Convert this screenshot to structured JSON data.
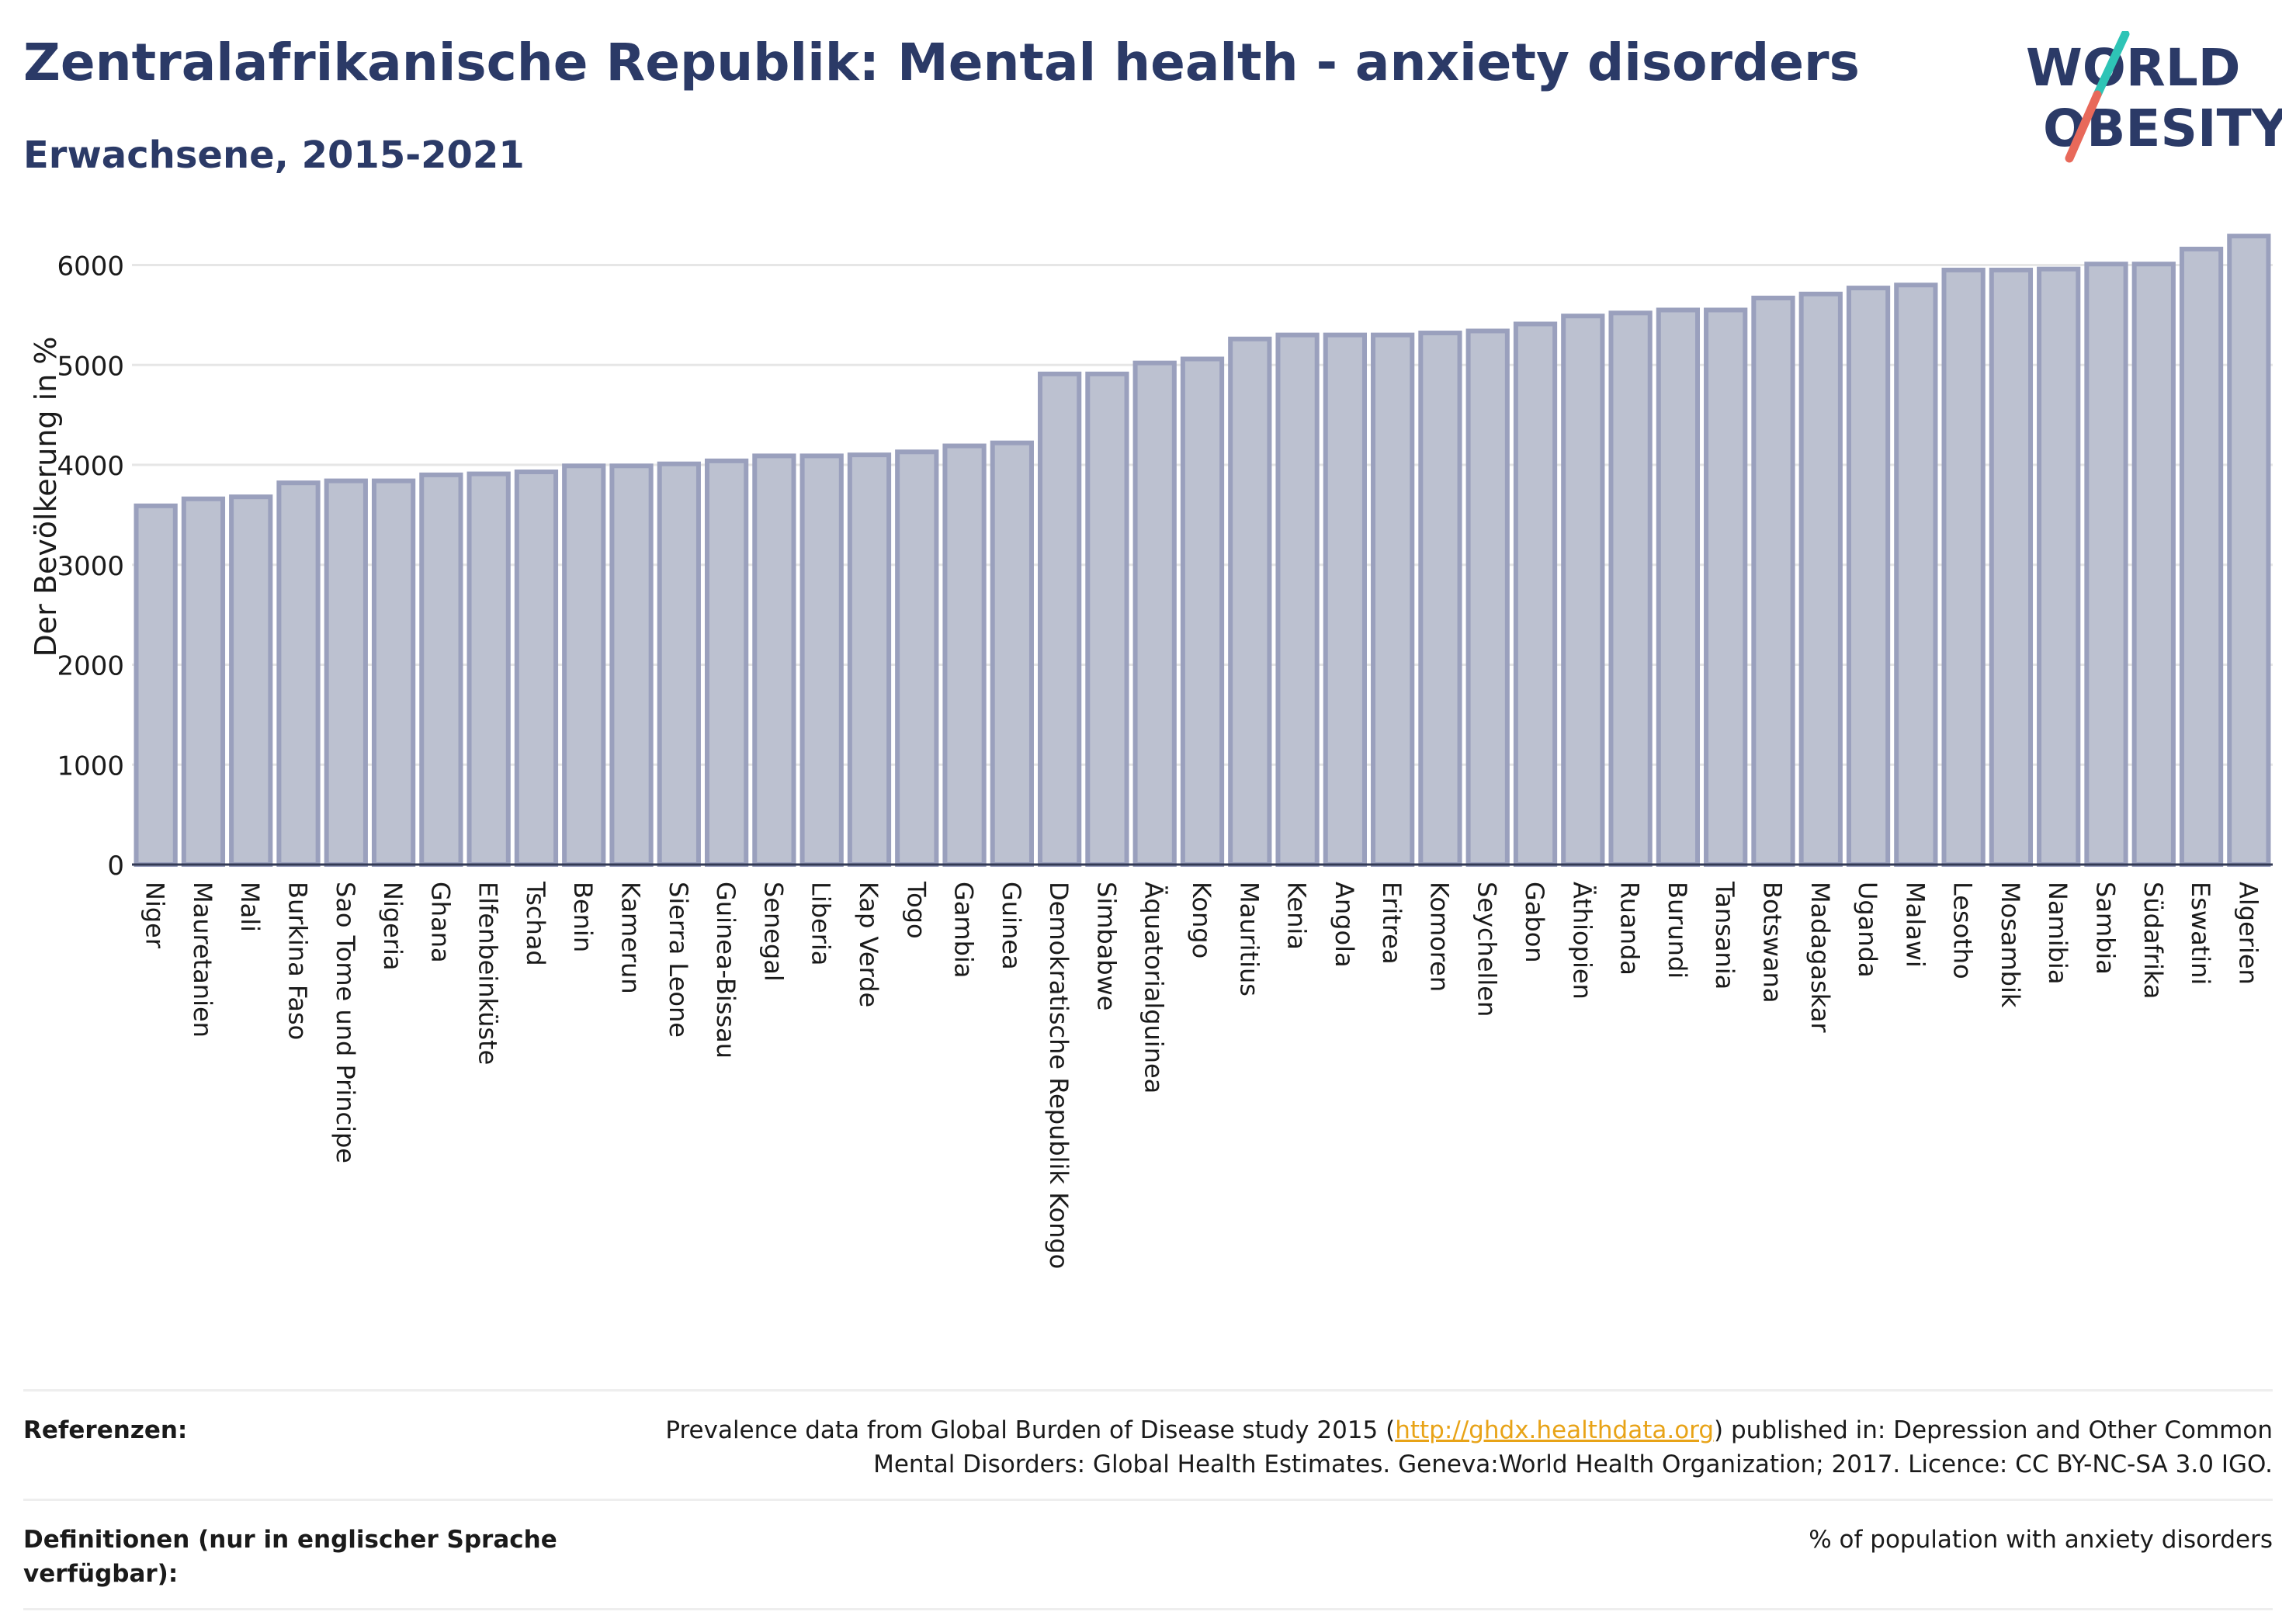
{
  "header": {
    "title": "Zentralafrikanische Republik: Mental health - anxiety disorders",
    "subtitle": "Erwachsene, 2015-2021"
  },
  "logo": {
    "line1": "WORLD",
    "line2": "OBESITY"
  },
  "colors": {
    "title": "#2b3a67",
    "bar_fill": "#bcc1d0",
    "bar_stroke": "#9aa0bd",
    "logo_teal": "#2ec4b6",
    "logo_red": "#e8695a",
    "link": "#e8a317"
  },
  "chart_data": {
    "type": "bar",
    "title": "Zentralafrikanische Republik: Mental health - anxiety disorders",
    "subtitle": "Erwachsene, 2015-2021",
    "xlabel": "",
    "ylabel": "Der Bevölkerung in %",
    "ylim": [
      0,
      6400
    ],
    "yticks": [
      0,
      1000,
      2000,
      3000,
      4000,
      5000,
      6000
    ],
    "ytick_labels": [
      "0",
      "1000",
      "2000",
      "3000",
      "4000",
      "5000",
      "6000"
    ],
    "grid": true,
    "categories": [
      "Niger",
      "Mauretanien",
      "Mali",
      "Burkina Faso",
      "Sao Tome und Principe",
      "Nigeria",
      "Ghana",
      "Elfenbeinküste",
      "Tschad",
      "Benin",
      "Kamerun",
      "Sierra Leone",
      "Guinea-Bissau",
      "Senegal",
      "Liberia",
      "Kap Verde",
      "Togo",
      "Gambia",
      "Guinea",
      "Demokratische Republik Kongo",
      "Simbabwe",
      "Äquatorialguinea",
      "Kongo",
      "Mauritius",
      "Kenia",
      "Angola",
      "Eritrea",
      "Komoren",
      "Seychellen",
      "Gabon",
      "Äthiopien",
      "Ruanda",
      "Burundi",
      "Tansania",
      "Botswana",
      "Madagaskar",
      "Uganda",
      "Malawi",
      "Lesotho",
      "Mosambik",
      "Namibia",
      "Sambia",
      "Südafrika",
      "Eswatini",
      "Algerien"
    ],
    "values": [
      3590,
      3660,
      3680,
      3820,
      3840,
      3840,
      3900,
      3910,
      3930,
      3990,
      3990,
      4010,
      4040,
      4090,
      4090,
      4100,
      4130,
      4190,
      4220,
      4910,
      4910,
      5020,
      5060,
      5260,
      5300,
      5300,
      5300,
      5320,
      5340,
      5410,
      5490,
      5520,
      5550,
      5550,
      5670,
      5710,
      5770,
      5800,
      5950,
      5950,
      5960,
      6010,
      6010,
      6160,
      6290
    ]
  },
  "footer": {
    "references_label": "Referenzen:",
    "references_pre": "Prevalence data from Global Burden of Disease study 2015 (",
    "references_link": "http://ghdx.healthdata.org",
    "references_post": ") published in: Depression and Other Common Mental Disorders: Global Health Estimates. Geneva:World Health Organization; 2017. Licence: CC BY-NC-SA 3.0 IGO.",
    "definitions_label": "Definitionen (nur in englischer Sprache verfügbar):",
    "definitions_text": "% of population with anxiety disorders"
  }
}
